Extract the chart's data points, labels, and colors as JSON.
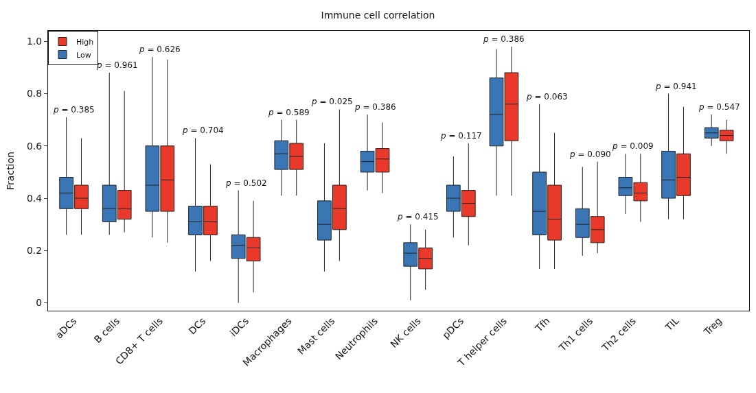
{
  "chart_data": {
    "type": "box",
    "title": "Immune cell correlation",
    "ylabel": "Fraction",
    "categories": [
      "aDCs",
      "B cells",
      "CD8+ T cells",
      "DCs",
      "iDCs",
      "Macrophages",
      "Mast cells",
      "Neutrophils",
      "NK cells",
      "pDCs",
      "T helper cells",
      "Tfh",
      "Th1 cells",
      "Th2 cells",
      "TIL",
      "Treg"
    ],
    "series": [
      {
        "name": "Low",
        "color": "#3a75b5",
        "boxes": [
          {
            "low": 0.26,
            "q1": 0.36,
            "median": 0.42,
            "q3": 0.48,
            "high": 0.71
          },
          {
            "low": 0.26,
            "q1": 0.31,
            "median": 0.36,
            "q3": 0.45,
            "high": 0.88
          },
          {
            "low": 0.25,
            "q1": 0.35,
            "median": 0.45,
            "q3": 0.6,
            "high": 0.94
          },
          {
            "low": 0.12,
            "q1": 0.26,
            "median": 0.31,
            "q3": 0.37,
            "high": 0.63
          },
          {
            "low": 0.0,
            "q1": 0.17,
            "median": 0.22,
            "q3": 0.26,
            "high": 0.43
          },
          {
            "low": 0.41,
            "q1": 0.51,
            "median": 0.57,
            "q3": 0.62,
            "high": 0.7
          },
          {
            "low": 0.12,
            "q1": 0.24,
            "median": 0.3,
            "q3": 0.39,
            "high": 0.61
          },
          {
            "low": 0.43,
            "q1": 0.5,
            "median": 0.54,
            "q3": 0.58,
            "high": 0.72
          },
          {
            "low": 0.01,
            "q1": 0.14,
            "median": 0.19,
            "q3": 0.23,
            "high": 0.3
          },
          {
            "low": 0.25,
            "q1": 0.35,
            "median": 0.4,
            "q3": 0.45,
            "high": 0.56
          },
          {
            "low": 0.41,
            "q1": 0.6,
            "median": 0.72,
            "q3": 0.86,
            "high": 0.97
          },
          {
            "low": 0.13,
            "q1": 0.26,
            "median": 0.35,
            "q3": 0.5,
            "high": 0.76
          },
          {
            "low": 0.18,
            "q1": 0.25,
            "median": 0.3,
            "q3": 0.36,
            "high": 0.52
          },
          {
            "low": 0.34,
            "q1": 0.41,
            "median": 0.44,
            "q3": 0.48,
            "high": 0.57
          },
          {
            "low": 0.32,
            "q1": 0.4,
            "median": 0.47,
            "q3": 0.58,
            "high": 0.8
          },
          {
            "low": 0.6,
            "q1": 0.63,
            "median": 0.65,
            "q3": 0.67,
            "high": 0.72
          }
        ]
      },
      {
        "name": "High",
        "color": "#e8392b",
        "boxes": [
          {
            "low": 0.26,
            "q1": 0.36,
            "median": 0.4,
            "q3": 0.45,
            "high": 0.63
          },
          {
            "low": 0.27,
            "q1": 0.32,
            "median": 0.36,
            "q3": 0.43,
            "high": 0.81
          },
          {
            "low": 0.23,
            "q1": 0.35,
            "median": 0.47,
            "q3": 0.6,
            "high": 0.93
          },
          {
            "low": 0.16,
            "q1": 0.26,
            "median": 0.31,
            "q3": 0.37,
            "high": 0.53
          },
          {
            "low": 0.04,
            "q1": 0.16,
            "median": 0.21,
            "q3": 0.25,
            "high": 0.39
          },
          {
            "low": 0.41,
            "q1": 0.51,
            "median": 0.56,
            "q3": 0.61,
            "high": 0.7
          },
          {
            "low": 0.16,
            "q1": 0.28,
            "median": 0.36,
            "q3": 0.45,
            "high": 0.74
          },
          {
            "low": 0.42,
            "q1": 0.5,
            "median": 0.55,
            "q3": 0.59,
            "high": 0.69
          },
          {
            "low": 0.05,
            "q1": 0.13,
            "median": 0.17,
            "q3": 0.21,
            "high": 0.28
          },
          {
            "low": 0.22,
            "q1": 0.33,
            "median": 0.38,
            "q3": 0.43,
            "high": 0.61
          },
          {
            "low": 0.41,
            "q1": 0.62,
            "median": 0.76,
            "q3": 0.88,
            "high": 0.98
          },
          {
            "low": 0.13,
            "q1": 0.24,
            "median": 0.32,
            "q3": 0.45,
            "high": 0.65
          },
          {
            "low": 0.19,
            "q1": 0.23,
            "median": 0.28,
            "q3": 0.33,
            "high": 0.54
          },
          {
            "low": 0.31,
            "q1": 0.39,
            "median": 0.42,
            "q3": 0.46,
            "high": 0.57
          },
          {
            "low": 0.32,
            "q1": 0.41,
            "median": 0.48,
            "q3": 0.57,
            "high": 0.75
          },
          {
            "low": 0.57,
            "q1": 0.62,
            "median": 0.64,
            "q3": 0.66,
            "high": 0.7
          }
        ]
      }
    ],
    "annotations": [
      "p = 0.385",
      "p = 0.961",
      "p = 0.626",
      "p = 0.704",
      "p = 0.502",
      "p = 0.589",
      "p = 0.025",
      "p = 0.386",
      "p = 0.415",
      "p = 0.117",
      "p = 0.386",
      "p = 0.063",
      "p = 0.090",
      "p = 0.009",
      "p = 0.941",
      "p = 0.547"
    ],
    "ylim": [
      -0.03,
      1.04
    ],
    "yticks": [
      0,
      0.2,
      0.4,
      0.6,
      0.8,
      {
        "value": 1,
        "label": "1.0"
      }
    ],
    "legend": "top left"
  }
}
